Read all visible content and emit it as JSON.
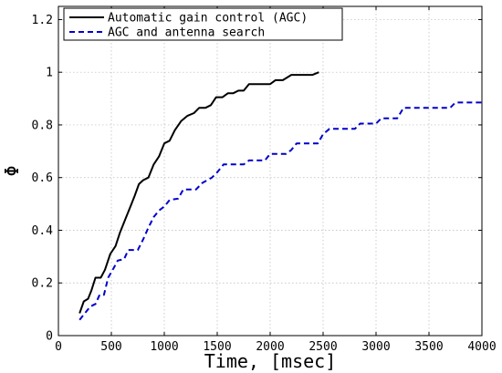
{
  "chart_data": {
    "type": "line",
    "title": "",
    "xlabel": "Time, [msec]",
    "ylabel": "Φ",
    "xlim": [
      0,
      4000
    ],
    "ylim": [
      0,
      1.25
    ],
    "x_ticks": [
      0,
      500,
      1000,
      1500,
      2000,
      2500,
      3000,
      3500,
      4000
    ],
    "x_tick_labels": [
      "0",
      "500",
      "1000",
      "1500",
      "2000",
      "2500",
      "3000",
      "3500",
      "4000"
    ],
    "y_ticks": [
      0,
      0.2,
      0.4,
      0.6,
      0.8,
      1.0,
      1.2
    ],
    "y_tick_labels": [
      "0",
      "0.2",
      "0.4",
      "0.6",
      "0.8",
      "1",
      "1.2"
    ],
    "grid": true,
    "legend_position": "top-left",
    "series": [
      {
        "name": "Automatic gain control (AGC)",
        "color": "#000000",
        "style": "solid",
        "points": [
          [
            200,
            0.085
          ],
          [
            240,
            0.13
          ],
          [
            280,
            0.14
          ],
          [
            310,
            0.17
          ],
          [
            350,
            0.22
          ],
          [
            400,
            0.22
          ],
          [
            440,
            0.25
          ],
          [
            490,
            0.31
          ],
          [
            540,
            0.34
          ],
          [
            580,
            0.39
          ],
          [
            630,
            0.44
          ],
          [
            680,
            0.49
          ],
          [
            720,
            0.53
          ],
          [
            760,
            0.575
          ],
          [
            800,
            0.59
          ],
          [
            850,
            0.6
          ],
          [
            900,
            0.65
          ],
          [
            950,
            0.68
          ],
          [
            1000,
            0.73
          ],
          [
            1050,
            0.74
          ],
          [
            1100,
            0.78
          ],
          [
            1160,
            0.815
          ],
          [
            1220,
            0.835
          ],
          [
            1280,
            0.845
          ],
          [
            1330,
            0.865
          ],
          [
            1390,
            0.865
          ],
          [
            1440,
            0.875
          ],
          [
            1490,
            0.905
          ],
          [
            1550,
            0.905
          ],
          [
            1600,
            0.92
          ],
          [
            1650,
            0.92
          ],
          [
            1700,
            0.93
          ],
          [
            1750,
            0.93
          ],
          [
            1800,
            0.955
          ],
          [
            2000,
            0.955
          ],
          [
            2050,
            0.97
          ],
          [
            2120,
            0.97
          ],
          [
            2200,
            0.99
          ],
          [
            2400,
            0.99
          ],
          [
            2460,
            1.0
          ]
        ]
      },
      {
        "name": "AGC and antenna search",
        "color": "#0000cc",
        "style": "dashed",
        "points": [
          [
            200,
            0.06
          ],
          [
            260,
            0.09
          ],
          [
            300,
            0.11
          ],
          [
            350,
            0.12
          ],
          [
            390,
            0.155
          ],
          [
            430,
            0.155
          ],
          [
            470,
            0.22
          ],
          [
            520,
            0.255
          ],
          [
            560,
            0.285
          ],
          [
            620,
            0.29
          ],
          [
            660,
            0.325
          ],
          [
            750,
            0.325
          ],
          [
            800,
            0.365
          ],
          [
            850,
            0.41
          ],
          [
            900,
            0.45
          ],
          [
            950,
            0.475
          ],
          [
            1000,
            0.49
          ],
          [
            1050,
            0.515
          ],
          [
            1130,
            0.52
          ],
          [
            1180,
            0.555
          ],
          [
            1300,
            0.555
          ],
          [
            1360,
            0.58
          ],
          [
            1450,
            0.6
          ],
          [
            1500,
            0.62
          ],
          [
            1560,
            0.65
          ],
          [
            1750,
            0.65
          ],
          [
            1800,
            0.665
          ],
          [
            1950,
            0.665
          ],
          [
            2000,
            0.69
          ],
          [
            2150,
            0.69
          ],
          [
            2200,
            0.705
          ],
          [
            2250,
            0.73
          ],
          [
            2450,
            0.73
          ],
          [
            2500,
            0.765
          ],
          [
            2560,
            0.785
          ],
          [
            2800,
            0.785
          ],
          [
            2850,
            0.805
          ],
          [
            3000,
            0.805
          ],
          [
            3050,
            0.825
          ],
          [
            3200,
            0.825
          ],
          [
            3260,
            0.865
          ],
          [
            3700,
            0.865
          ],
          [
            3750,
            0.885
          ],
          [
            4000,
            0.885
          ]
        ]
      }
    ]
  }
}
